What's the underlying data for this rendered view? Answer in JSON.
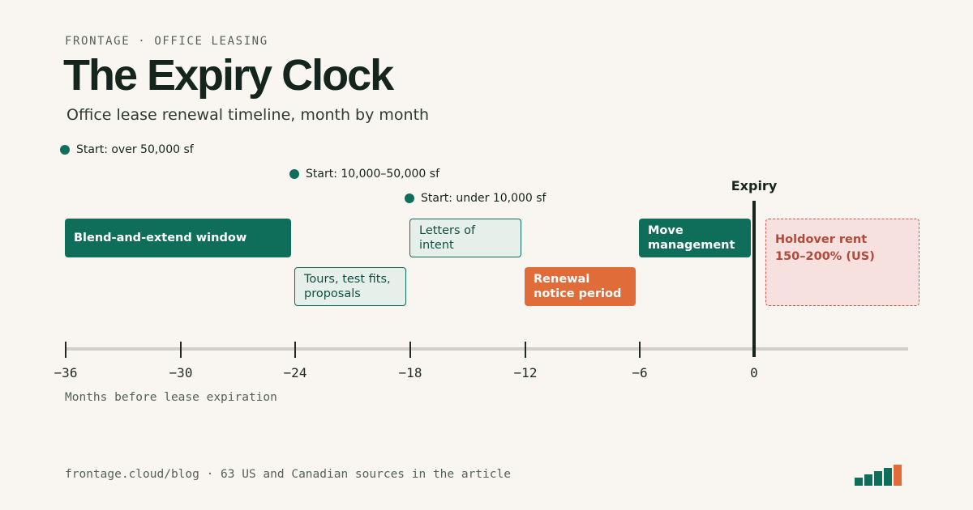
{
  "header": {
    "eyebrow": "FRONTAGE · OFFICE LEASING",
    "title": "The Expiry Clock",
    "subtitle": "Office lease renewal timeline, month by month"
  },
  "start_markers": [
    {
      "label": "Start: over 50,000 sf",
      "month": -36
    },
    {
      "label": "Start: 10,000–50,000 sf",
      "month": -24
    },
    {
      "label": "Start: under 10,000 sf",
      "month": -18
    }
  ],
  "phases": [
    {
      "label": "Blend-and-extend window",
      "start_month": -36,
      "end_month": -24,
      "style": "solid-green"
    },
    {
      "label": "Tours, test fits, proposals",
      "start_month": -24,
      "end_month": -18,
      "style": "outline-green"
    },
    {
      "label": "Letters of intent",
      "start_month": -18,
      "end_month": -12,
      "style": "outline-green"
    },
    {
      "label": "Renewal notice period",
      "start_month": -12,
      "end_month": -6,
      "style": "solid-orange"
    },
    {
      "label": "Move management",
      "start_month": -6,
      "end_month": 0,
      "style": "solid-green"
    },
    {
      "label": "Holdover rent 150–200% (US)",
      "start_month": 0,
      "end_month": null,
      "style": "dashed-red"
    }
  ],
  "axis": {
    "ticks": [
      "−36",
      "−30",
      "−24",
      "−18",
      "−12",
      "−6",
      "0"
    ],
    "title": "Months before lease expiration",
    "expiry_label": "Expiry"
  },
  "footer": {
    "text": "frontage.cloud/blog · 63 US and Canadian sources in the article"
  },
  "colors": {
    "green": "#0f6e5a",
    "orange": "#e06c3a",
    "holdover_fill": "#f7e1df",
    "holdover_text": "#b04a3a",
    "background": "#f9f6f1"
  },
  "logo": {
    "icon": "bar-chart-logo-icon"
  }
}
